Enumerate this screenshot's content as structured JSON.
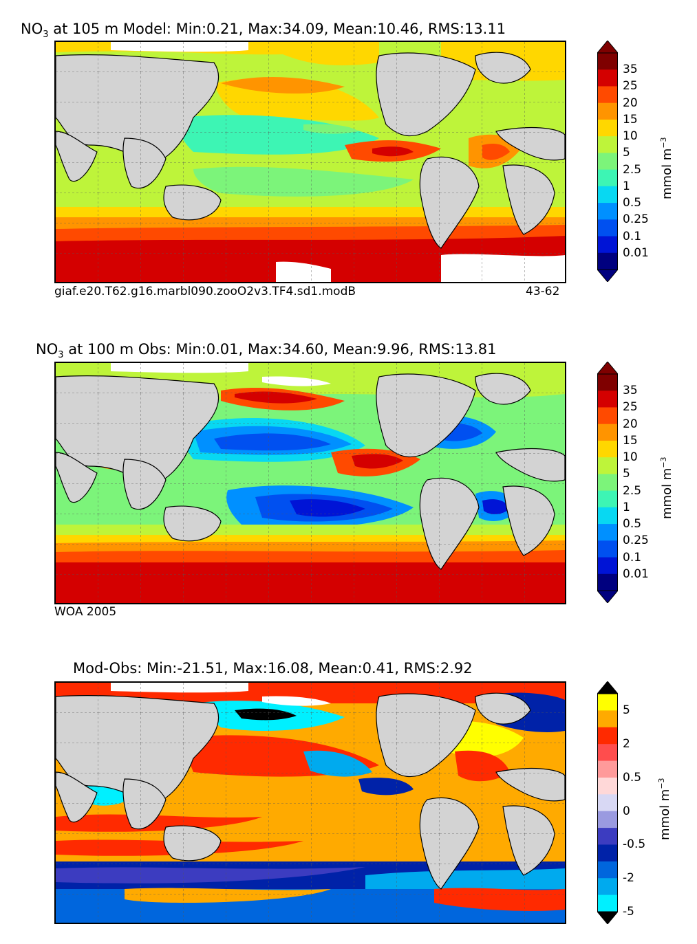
{
  "panels": [
    {
      "title_species": "NO",
      "title_sub": "3",
      "title_rest": " at 105 m Model: Min:0.21, Max:34.09, Mean:10.46, RMS:13.11",
      "footer_left": "giaf.e20.T62.g16.marbl090.zooO2v3.TF4.sd1.modB",
      "footer_right": "43-62",
      "colorbar": {
        "ticks": [
          "35",
          "25",
          "20",
          "15",
          "10",
          "5",
          "2.5",
          "1",
          "0.5",
          "0.25",
          "0.1",
          "0.01"
        ],
        "colors": [
          "#7f0000",
          "#d40000",
          "#ff4a00",
          "#ff9400",
          "#ffd700",
          "#bef43a",
          "#7cf47a",
          "#3df5b4",
          "#08d8f2",
          "#0090ff",
          "#0050f0",
          "#0014d6",
          "#00007f"
        ],
        "unit_base": "mmol m",
        "unit_exp": "−3"
      }
    },
    {
      "title_species": "NO",
      "title_sub": "3",
      "title_rest": " at 100 m Obs: Min:0.01, Max:34.60, Mean:9.96, RMS:13.81",
      "footer_left": "WOA 2005",
      "footer_right": "",
      "colorbar": {
        "ticks": [
          "35",
          "25",
          "20",
          "15",
          "10",
          "5",
          "2.5",
          "1",
          "0.5",
          "0.25",
          "0.1",
          "0.01"
        ],
        "colors": [
          "#7f0000",
          "#d40000",
          "#ff4a00",
          "#ff9400",
          "#ffd700",
          "#bef43a",
          "#7cf47a",
          "#3df5b4",
          "#08d8f2",
          "#0090ff",
          "#0050f0",
          "#0014d6",
          "#00007f"
        ],
        "unit_base": "mmol m",
        "unit_exp": "−3"
      }
    },
    {
      "title_species": "",
      "title_sub": "",
      "title_rest": "Mod-Obs: Min:-21.51, Max:16.08, Mean:0.41, RMS:2.92",
      "footer_left": "",
      "footer_right": "",
      "colorbar": {
        "ticks": [
          "5",
          "2",
          "0.5",
          "0",
          "-0.5",
          "-2",
          "-5"
        ],
        "colors": [
          "#ffff00",
          "#ffaa00",
          "#ff2a00",
          "#ff4d4d",
          "#ff9a9a",
          "#ffd8d8",
          "#d8d8f4",
          "#9a9ae0",
          "#3c3cc0",
          "#0022a8",
          "#0066dd",
          "#00aaee",
          "#00f0ff"
        ],
        "unit_base": "mmol m",
        "unit_exp": "−3"
      }
    }
  ],
  "colors": {
    "land": "#d3d3d3",
    "ice": "#ffffff",
    "coast": "#000000"
  }
}
